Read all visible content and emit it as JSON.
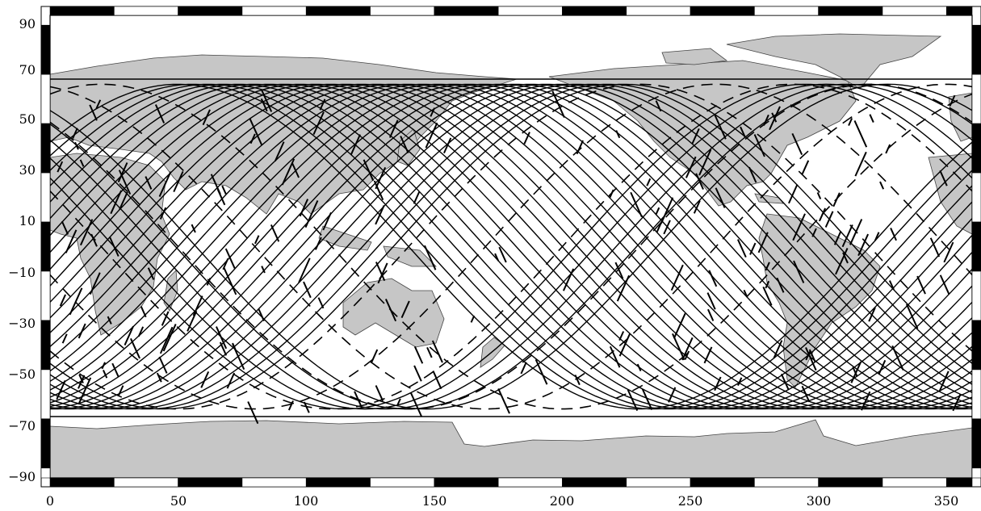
{
  "map": {
    "x_ticks": [
      "0",
      "50",
      "100",
      "150",
      "200",
      "250",
      "300",
      "350"
    ],
    "y_ticks": [
      "90",
      "70",
      "50",
      "30",
      "10",
      "−10",
      "−30",
      "−50",
      "−70",
      "−90"
    ],
    "x_range": [
      0,
      360
    ],
    "y_range": [
      -94,
      94
    ],
    "track_latitude_limit": 66,
    "land_color": "#c6c6c6",
    "track_color": "#000000"
  }
}
